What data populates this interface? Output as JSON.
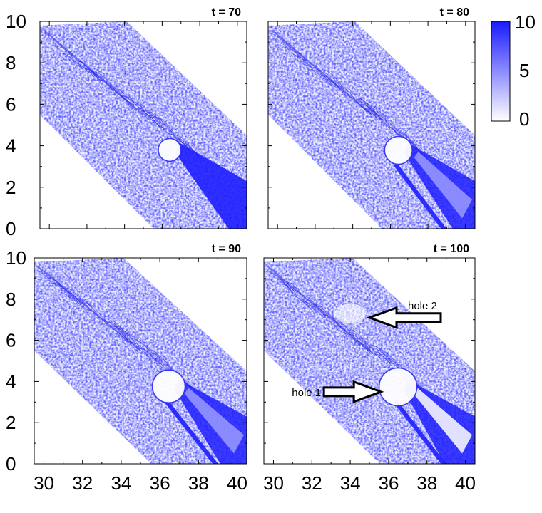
{
  "chart_data": {
    "type": "heatmap",
    "colorbar": {
      "ticks": [
        10,
        5,
        0
      ],
      "colors": {
        "low": "#ffffff",
        "high": "#1a1aff"
      }
    },
    "x_ticks": [
      30,
      32,
      34,
      36,
      38,
      40
    ],
    "y_ticks": [
      0,
      2,
      4,
      6,
      8,
      10
    ],
    "xlim": [
      29.5,
      40.5
    ],
    "ylim": [
      0,
      10
    ],
    "panels": [
      {
        "time_label": "t = 70",
        "annotations": []
      },
      {
        "time_label": "t = 80",
        "annotations": []
      },
      {
        "time_label": "t = 90",
        "annotations": []
      },
      {
        "time_label": "t = 100",
        "annotations": [
          {
            "text": "hole 2",
            "x": 35.0,
            "y": 7.1,
            "arrow": "left"
          },
          {
            "text": "hole 1",
            "x": 35.6,
            "y": 3.5,
            "arrow": "right"
          }
        ]
      }
    ]
  }
}
